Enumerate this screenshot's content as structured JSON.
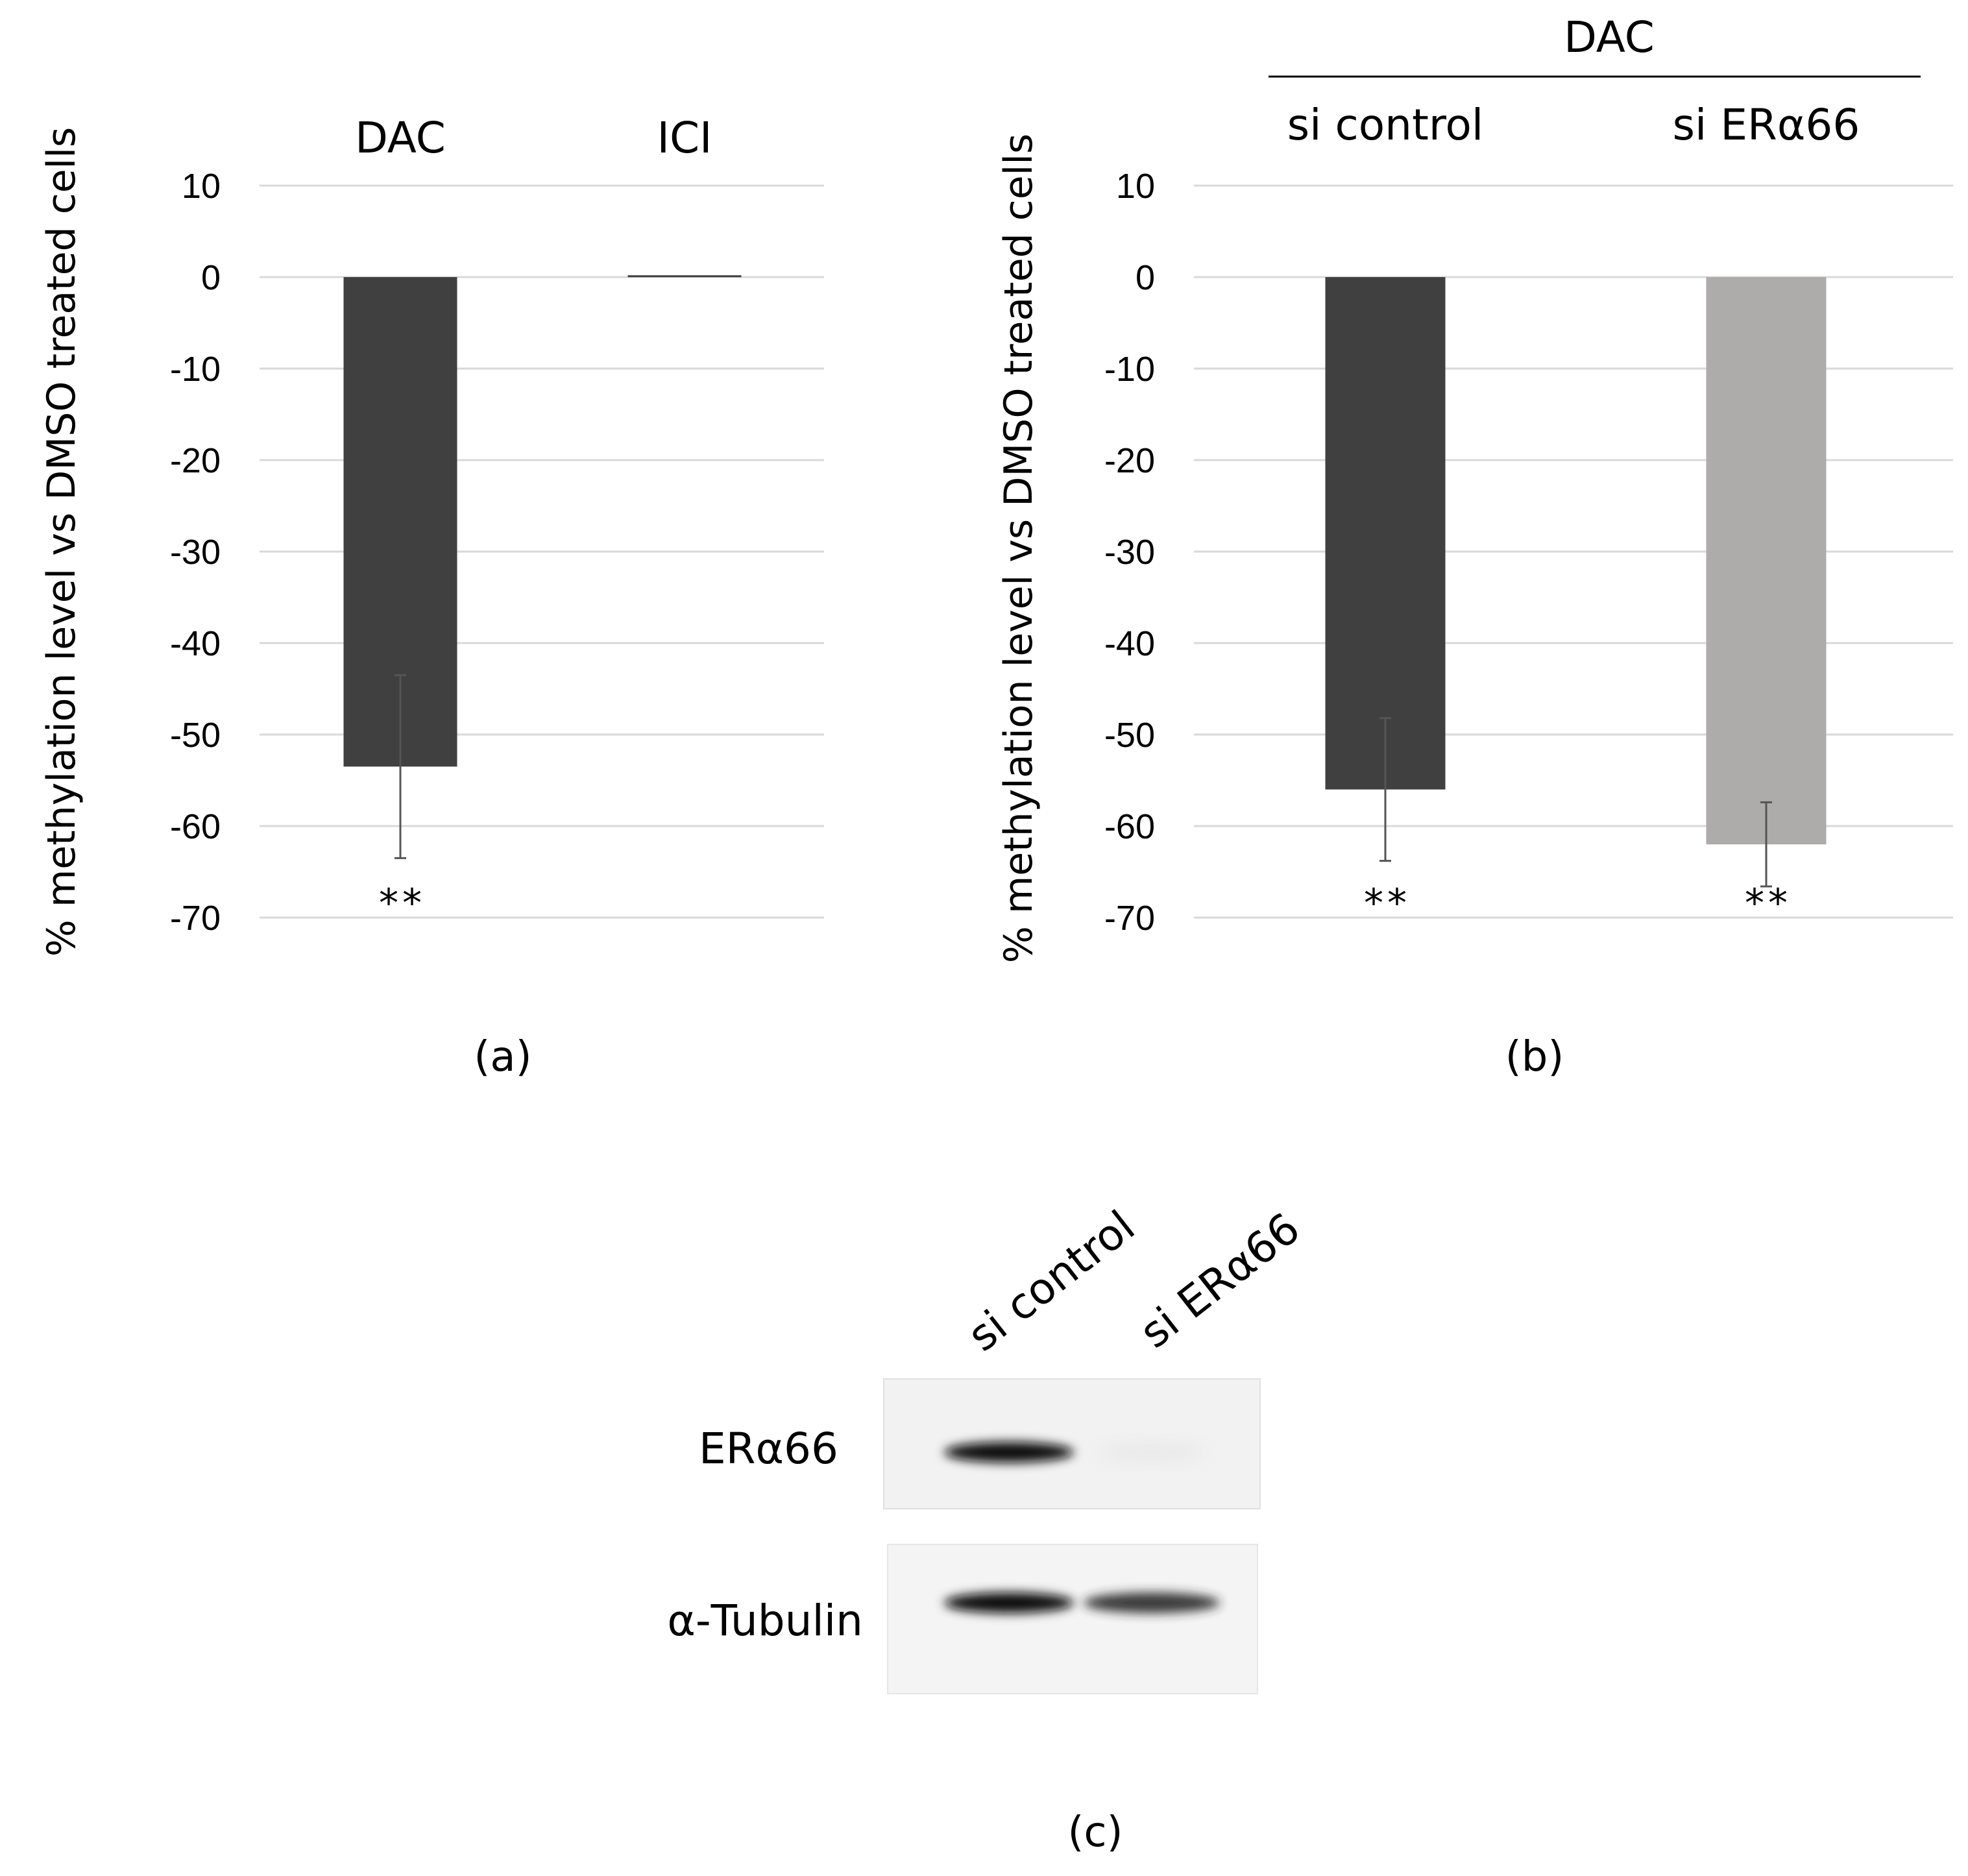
{
  "chart_data": [
    {
      "type": "bar",
      "panel_label": "(a)",
      "categories": [
        "DAC",
        "ICI"
      ],
      "values": [
        -53.5,
        0.2
      ],
      "errors": [
        10.0,
        0
      ],
      "significance": [
        "**",
        ""
      ],
      "colors": [
        "#404040",
        "#404040"
      ],
      "ylabel": "% methylation level vs DMSO treated cells",
      "ylim": [
        -70,
        10
      ],
      "yticks": [
        "10",
        "0",
        "-10",
        "-20",
        "-30",
        "-40",
        "-50",
        "-60",
        "-70"
      ],
      "grid": true
    },
    {
      "type": "bar",
      "panel_label": "(b)",
      "group_label": "DAC",
      "categories": [
        "si control",
        "si ERα66"
      ],
      "values": [
        -56,
        -62
      ],
      "errors": [
        7.8,
        4.6
      ],
      "significance": [
        "**",
        "**"
      ],
      "colors": [
        "#404040",
        "#aeabab"
      ],
      "ylabel": "% methylation level vs DMSO treated cells",
      "ylim": [
        -70,
        10
      ],
      "yticks": [
        "10",
        "0",
        "-10",
        "-20",
        "-30",
        "-40",
        "-50",
        "-60",
        "-70"
      ],
      "grid": true
    }
  ],
  "blot": {
    "panel_label": "(c)",
    "lanes": [
      "si control",
      "si ERα66"
    ],
    "rows": [
      {
        "label": "ERα66",
        "band_intensity": [
          1.0,
          0.12
        ]
      },
      {
        "label": "α-Tubulin",
        "band_intensity": [
          1.0,
          0.9
        ]
      }
    ]
  }
}
